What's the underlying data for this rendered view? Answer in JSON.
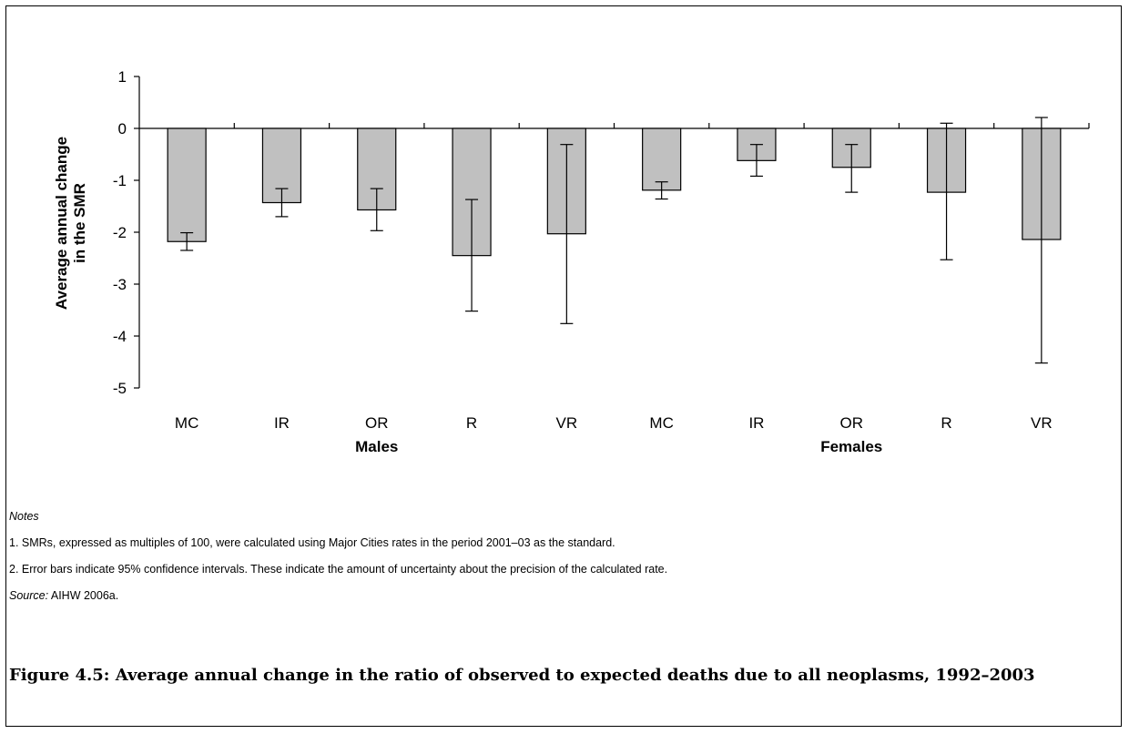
{
  "chart_data": {
    "type": "bar",
    "categories": [
      "MC",
      "IR",
      "OR",
      "R",
      "VR",
      "MC",
      "IR",
      "OR",
      "R",
      "VR"
    ],
    "groups": [
      {
        "label": "Males",
        "categories": [
          "MC",
          "IR",
          "OR",
          "R",
          "VR"
        ]
      },
      {
        "label": "Females",
        "categories": [
          "MC",
          "IR",
          "OR",
          "R",
          "VR"
        ]
      }
    ],
    "values": [
      -2.18,
      -1.43,
      -1.57,
      -2.45,
      -2.03,
      -1.19,
      -0.62,
      -0.75,
      -1.23,
      -2.14
    ],
    "error_low": [
      -2.35,
      -1.7,
      -1.97,
      -3.52,
      -3.76,
      -1.36,
      -0.92,
      -1.23,
      -2.53,
      -4.52
    ],
    "error_high": [
      -2.01,
      -1.16,
      -1.16,
      -1.37,
      -0.31,
      -1.03,
      -0.31,
      -0.31,
      0.1,
      0.21
    ],
    "ylabel": "Average annual change in the SMR",
    "ylim": [
      -5,
      1
    ],
    "yticks": [
      1,
      0,
      -1,
      -2,
      -3,
      -4,
      -5
    ],
    "ytick_labels": [
      "1",
      "0",
      "-1",
      "-2",
      "-3",
      "-4",
      "-5"
    ],
    "grid": false,
    "bar_color": "#c0c0c0"
  },
  "notes": {
    "heading": "Notes",
    "note1": "1. SMRs, expressed as multiples of 100, were calculated using Major Cities rates in the period 2001–03 as the standard.",
    "note2": "2. Error bars indicate 95% confidence intervals. These indicate the amount of uncertainty about the precision of the calculated rate.",
    "source_label": "Source:",
    "source_text": " AIHW 2006a."
  },
  "caption": "Figure 4.5: Average annual change in the ratio of observed to expected deaths due to all neoplasms, 1992–2003"
}
